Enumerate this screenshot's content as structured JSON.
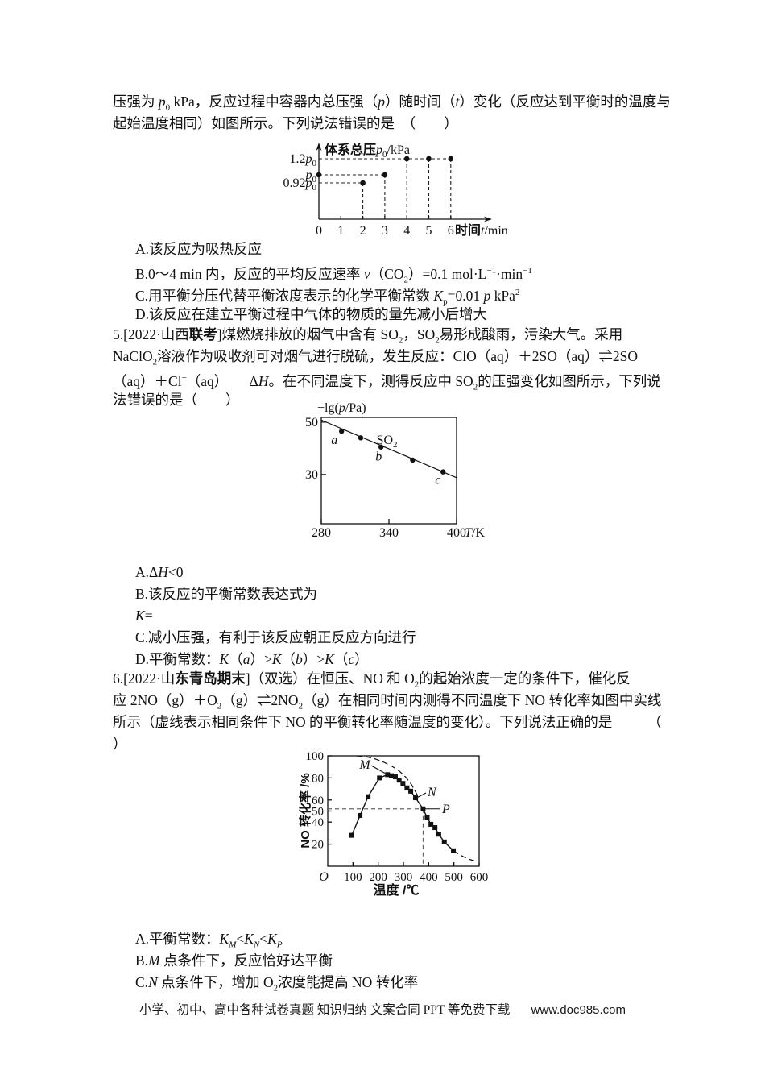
{
  "intro": {
    "lines": [
      "压强为 <i>p</i><sub>0</sub> kPa，反应过程中容器内总压强（<i>p</i>）随时间（<i>t</i>）变化（反应达到平衡时的温度与",
      "起始温度相同）如图所示。下列说法错误的是　（　　）"
    ]
  },
  "q4": {
    "options": [
      "A.该反应为吸热反应",
      "B.0～4 min 内，反应的平均反应速率 <i>v</i>（CO<sub>2</sub>）=0.1 mol·L<sup>−1</sup>·min<sup>−1</sup>",
      "C.用平衡分压代替平衡浓度表示的化学平衡常数 <i>K</i><sub>p</sub>=0.01 <i>p</i> kPa<sup>2</sup>",
      "D.该反应在建立平衡过程中气体的物质的量先减小后增大"
    ]
  },
  "q5": {
    "lines": [
      "5.[2022·山西<b>联考</b>]煤燃烧排放的烟气中含有 SO<sub>2</sub>，SO<sub>2</sub>易形成酸雨，污染大气。采用",
      "NaClO<sub>2</sub>溶液作为吸收剂可对烟气进行脱硫，发生反应：ClO（aq）＋2SO（aq）⇌2SO",
      "（aq）＋Cl<sup>−</sup>（aq）　　Δ<i>H</i>。在不同温度下，测得反应中 SO<sub>2</sub>的压强变化如图所示，下列说",
      "法错误的是（　　）"
    ],
    "options": [
      "A.Δ<i>H</i>&lt;0",
      "B.该反应的平衡常数表达式为",
      "<i>K</i>=",
      "C.减小压强，有利于该反应朝正反应方向进行",
      "D.平衡常数：<i>K</i>（<i>a</i>）&gt;<i>K</i>（<i>b</i>）&gt;<i>K</i>（<i>c</i>）"
    ]
  },
  "q6": {
    "lines": [
      "6.[2022·山<b>东青岛期末</b>]（双选）在恒压、NO 和 O<sub>2</sub>的起始浓度一定的条件下，催化反",
      "应 2NO（g）＋O<sub>2</sub>（g）⇌2NO<sub>2</sub>（g）在相同时间内测得不同温度下 NO 转化率如图中实线",
      "所示（虚线表示相同条件下 NO 的平衡转化率随温度的变化）。下列说法正确的是　　　（",
      "）"
    ],
    "options": [
      "A.平衡常数：<i>K</i><sub><i>M</i></sub>&lt;<i>K</i><sub><i>N</i></sub>&lt;<i>K</i><sub><i>P</i></sub>",
      "B.<i>M</i> 点条件下，反应恰好达平衡",
      "C.<i>N</i> 点条件下，增加 O<sub>2</sub>浓度能提高 NO 转化率"
    ]
  },
  "footer": {
    "left": "小学、初中、高中各种试卷真题 知识归纳 文案合同 PPT 等免费下载",
    "right": "www.doc985.com"
  },
  "chart_data": [
    {
      "id": "pressure-time",
      "type": "scatter",
      "title": "体系总压p₀/kPa",
      "xlabel": "时间t/min",
      "title_segs": [
        [
          "体系总压",
          "h"
        ],
        [
          "p",
          "i"
        ],
        [
          "0",
          "sub"
        ],
        [
          "/kPa",
          ""
        ]
      ],
      "x_label_segs": [
        [
          "时间",
          "h"
        ],
        [
          "t",
          "i"
        ],
        [
          "/min",
          ""
        ]
      ],
      "x_ticks": [
        "0",
        "1",
        "2",
        "3",
        "4",
        "5",
        "6"
      ],
      "y_ticks": [
        {
          "value": 1.2,
          "segs": [
            [
              "1.2",
              ""
            ],
            [
              "p",
              "i"
            ],
            [
              "0",
              "sub"
            ]
          ]
        },
        {
          "value": 1.0,
          "segs": [
            [
              "p",
              "i"
            ],
            [
              "0",
              "sub"
            ]
          ]
        },
        {
          "value": 0.92,
          "segs": [
            [
              "0.92",
              ""
            ],
            [
              "p",
              "i"
            ],
            [
              "0",
              "sub"
            ]
          ]
        }
      ],
      "points": [
        [
          0,
          1.0
        ],
        [
          2,
          0.92
        ],
        [
          3,
          1.0
        ],
        [
          4,
          1.2
        ],
        [
          5,
          1.2
        ],
        [
          6,
          1.2
        ]
      ],
      "xlim": [
        0,
        6
      ]
    },
    {
      "id": "so2-pressure-temperature",
      "type": "scatter-line",
      "ylabel": "−lg(p/Pa)",
      "xlabel": "T/K",
      "series_label": "SO₂",
      "y_label_segs": [
        [
          "−lg(",
          ""
        ],
        [
          "p",
          "i"
        ],
        [
          "/Pa)",
          ""
        ]
      ],
      "x_label_segs": [
        [
          "T",
          "i"
        ],
        [
          "/K",
          ""
        ]
      ],
      "x_ticks": [
        280,
        340,
        400
      ],
      "y_ticks": [
        50,
        30
      ],
      "xlim": [
        280,
        400
      ],
      "y_window": [
        11.2,
        51.8
      ],
      "line": [
        [
          280,
          50.8
        ],
        [
          400,
          28.8
        ]
      ],
      "points": [
        {
          "x": 298,
          "y": 46.5,
          "label": "a"
        },
        {
          "x": 315,
          "y": 44.0,
          "label": ""
        },
        {
          "x": 333,
          "y": 40.5,
          "label": "b"
        },
        {
          "x": 361,
          "y": 35.5,
          "label": ""
        },
        {
          "x": 388,
          "y": 31.0,
          "label": "c"
        }
      ],
      "series_label_pos": [
        329,
        43.2
      ]
    },
    {
      "id": "no-conversion-temperature",
      "type": "line-scatter",
      "ylabel": "NO 转化率 /%",
      "xlabel": "温度 /℃",
      "origin_label": "O",
      "x_ticks": [
        100,
        200,
        300,
        400,
        500,
        600
      ],
      "y_ticks": [
        20,
        40,
        50,
        60,
        80,
        100
      ],
      "xlim": [
        0,
        600
      ],
      "ylim": [
        0,
        100
      ],
      "solid_series": [
        [
          95,
          28
        ],
        [
          128,
          46
        ],
        [
          160,
          63
        ],
        [
          205,
          80
        ],
        [
          237,
          83
        ],
        [
          252,
          82
        ],
        [
          268,
          81
        ],
        [
          283,
          78
        ],
        [
          298,
          75
        ],
        [
          314,
          71
        ],
        [
          329,
          68
        ],
        [
          348,
          62
        ],
        [
          378,
          52
        ],
        [
          394,
          44
        ],
        [
          409,
          38
        ],
        [
          425,
          35
        ],
        [
          440,
          29
        ],
        [
          462,
          22
        ],
        [
          498,
          14
        ]
      ],
      "dashed_series_pre": [
        [
          115,
          100
        ],
        [
          150,
          99.3
        ],
        [
          185,
          97.5
        ],
        [
          220,
          94.5
        ],
        [
          255,
          90.5
        ],
        [
          285,
          86
        ],
        [
          310,
          80.5
        ],
        [
          332,
          74
        ],
        [
          348,
          67.5
        ],
        [
          356,
          64
        ]
      ],
      "dashed_series_post": [
        [
          498,
          14
        ],
        [
          515,
          11.5
        ],
        [
          535,
          9
        ],
        [
          558,
          6.5
        ],
        [
          580,
          5
        ],
        [
          590,
          4.5
        ]
      ],
      "annotations": [
        "M",
        "N",
        "P"
      ],
      "guide_point": [
        378,
        52
      ]
    }
  ]
}
